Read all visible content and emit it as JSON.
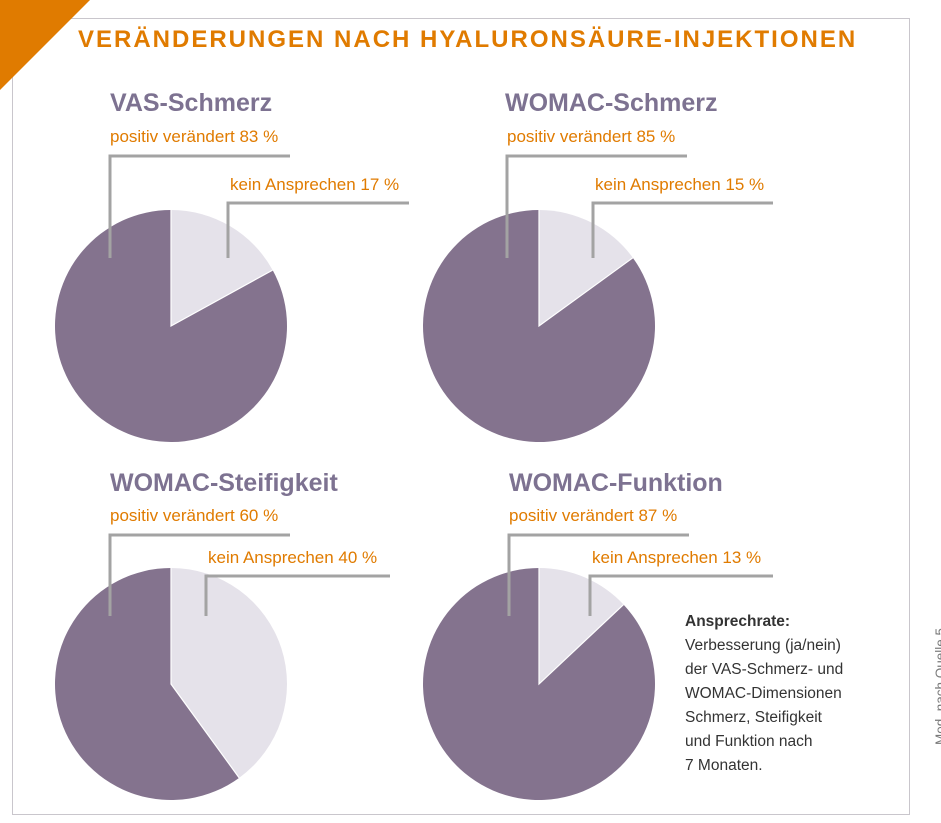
{
  "title": "VERÄNDERUNGEN NACH HYALURONSÄURE-INJEKTIONEN",
  "note": {
    "heading": "Ansprechrate:",
    "lines": [
      "Verbesserung (ja/nein)",
      "der VAS-Schmerz- und",
      "WOMAC-Dimensionen",
      "Schmerz, Steifigkeit",
      "und Funktion nach",
      "7 Monaten."
    ]
  },
  "source": "Mod. nach Quelle 5",
  "colors": {
    "accent": "#e07b00",
    "title_purple": "#7d7291",
    "slice_positive": "#84738e",
    "slice_no_response": "#e5e2ea",
    "leader_line": "#a3a3a3"
  },
  "chart_data": [
    {
      "type": "pie",
      "title": "VAS-Schmerz",
      "categories": [
        "positiv verändert",
        "kein Ansprechen"
      ],
      "values": [
        83,
        17
      ],
      "labels": [
        "positiv verändert 83 %",
        "kein Ansprechen 17 %"
      ]
    },
    {
      "type": "pie",
      "title": "WOMAC-Schmerz",
      "categories": [
        "positiv verändert",
        "kein Ansprechen"
      ],
      "values": [
        85,
        15
      ],
      "labels": [
        "positiv verändert 85 %",
        "kein Ansprechen 15 %"
      ]
    },
    {
      "type": "pie",
      "title": "WOMAC-Steifigkeit",
      "categories": [
        "positiv verändert",
        "kein Ansprechen"
      ],
      "values": [
        60,
        40
      ],
      "labels": [
        "positiv verändert 60 %",
        "kein Ansprechen 40 %"
      ]
    },
    {
      "type": "pie",
      "title": "WOMAC-Funktion",
      "categories": [
        "positiv verändert",
        "kein Ansprechen"
      ],
      "values": [
        87,
        13
      ],
      "labels": [
        "positiv verändert 87 %",
        "kein Ansprechen 13 %"
      ]
    }
  ]
}
